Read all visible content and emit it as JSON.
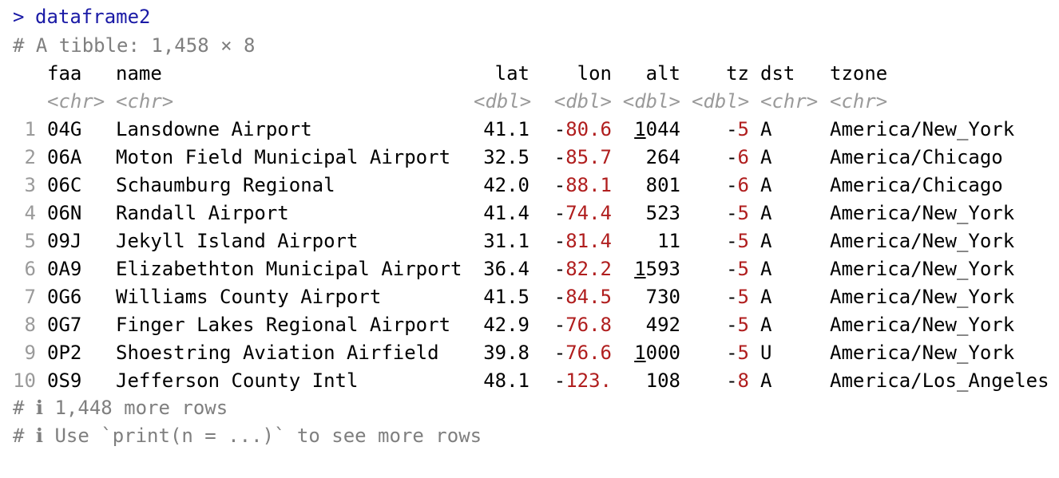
{
  "console": {
    "prompt_symbol": ">",
    "command": "dataframe2",
    "tibble_info": "# A tibble: 1,458 × 8",
    "footer_more_rows": "# ℹ 1,448 more rows",
    "footer_hint": "# ℹ Use `print(n = ...)` to see more rows"
  },
  "table": {
    "columns": [
      {
        "name": "faa",
        "type": "<chr>"
      },
      {
        "name": "name",
        "type": "<chr>"
      },
      {
        "name": "lat",
        "type": "<dbl>"
      },
      {
        "name": "lon",
        "type": "<dbl>"
      },
      {
        "name": "alt",
        "type": "<dbl>"
      },
      {
        "name": "tz",
        "type": "<dbl>"
      },
      {
        "name": "dst",
        "type": "<chr>"
      },
      {
        "name": "tzone",
        "type": "<chr>"
      }
    ],
    "rows": [
      {
        "n": "1",
        "faa": "04G",
        "name": "Lansdowne Airport",
        "lat": "41.1",
        "lon_sign": "-",
        "lon": "80.6",
        "alt_lead": "1",
        "alt_rest": "044",
        "tz_sign": "-",
        "tz": "5",
        "dst": "A",
        "tzone": "America/New_York"
      },
      {
        "n": "2",
        "faa": "06A",
        "name": "Moton Field Municipal Airport",
        "lat": "32.5",
        "lon_sign": "-",
        "lon": "85.7",
        "alt_lead": "",
        "alt_rest": "264",
        "tz_sign": "-",
        "tz": "6",
        "dst": "A",
        "tzone": "America/Chicago"
      },
      {
        "n": "3",
        "faa": "06C",
        "name": "Schaumburg Regional",
        "lat": "42.0",
        "lon_sign": "-",
        "lon": "88.1",
        "alt_lead": "",
        "alt_rest": "801",
        "tz_sign": "-",
        "tz": "6",
        "dst": "A",
        "tzone": "America/Chicago"
      },
      {
        "n": "4",
        "faa": "06N",
        "name": "Randall Airport",
        "lat": "41.4",
        "lon_sign": "-",
        "lon": "74.4",
        "alt_lead": "",
        "alt_rest": "523",
        "tz_sign": "-",
        "tz": "5",
        "dst": "A",
        "tzone": "America/New_York"
      },
      {
        "n": "5",
        "faa": "09J",
        "name": "Jekyll Island Airport",
        "lat": "31.1",
        "lon_sign": "-",
        "lon": "81.4",
        "alt_lead": "",
        "alt_rest": "11",
        "tz_sign": "-",
        "tz": "5",
        "dst": "A",
        "tzone": "America/New_York"
      },
      {
        "n": "6",
        "faa": "0A9",
        "name": "Elizabethton Municipal Airport",
        "lat": "36.4",
        "lon_sign": "-",
        "lon": "82.2",
        "alt_lead": "1",
        "alt_rest": "593",
        "tz_sign": "-",
        "tz": "5",
        "dst": "A",
        "tzone": "America/New_York"
      },
      {
        "n": "7",
        "faa": "0G6",
        "name": "Williams County Airport",
        "lat": "41.5",
        "lon_sign": "-",
        "lon": "84.5",
        "alt_lead": "",
        "alt_rest": "730",
        "tz_sign": "-",
        "tz": "5",
        "dst": "A",
        "tzone": "America/New_York"
      },
      {
        "n": "8",
        "faa": "0G7",
        "name": "Finger Lakes Regional Airport",
        "lat": "42.9",
        "lon_sign": "-",
        "lon": "76.8",
        "alt_lead": "",
        "alt_rest": "492",
        "tz_sign": "-",
        "tz": "5",
        "dst": "A",
        "tzone": "America/New_York"
      },
      {
        "n": "9",
        "faa": "0P2",
        "name": "Shoestring Aviation Airfield",
        "lat": "39.8",
        "lon_sign": "-",
        "lon": "76.6",
        "alt_lead": "1",
        "alt_rest": "000",
        "tz_sign": "-",
        "tz": "5",
        "dst": "U",
        "tzone": "America/New_York"
      },
      {
        "n": "10",
        "faa": "0S9",
        "name": "Jefferson County Intl",
        "lat": "48.1",
        "lon_sign": "-",
        "lon": "123.",
        "alt_lead": "",
        "alt_rest": "108",
        "tz_sign": "-",
        "tz": "8",
        "dst": "A",
        "tzone": "America/Los_Angeles"
      }
    ]
  },
  "colors": {
    "prompt": "#1a1aa6",
    "negative": "#b01e1e",
    "meta": "#7f7f7f"
  }
}
